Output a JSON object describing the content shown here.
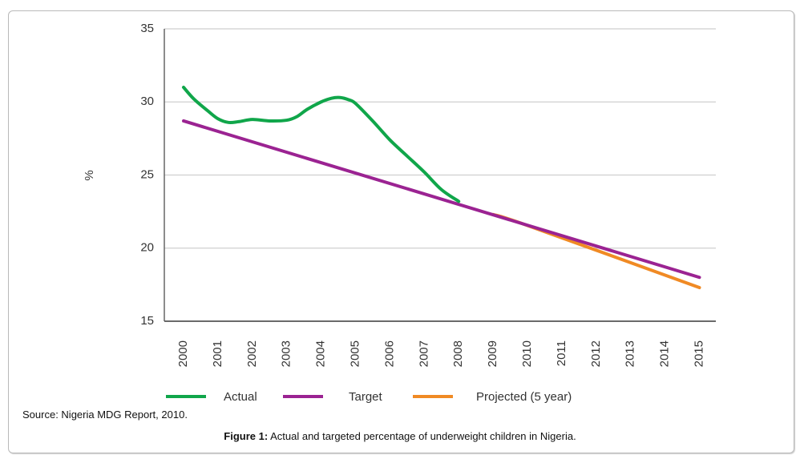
{
  "chart_data": {
    "type": "line",
    "title": "",
    "xlabel": "",
    "ylabel": "%",
    "ylim": [
      15,
      35
    ],
    "xlim": [
      2000,
      2015
    ],
    "yticks": [
      15,
      20,
      25,
      30,
      35
    ],
    "xticks": [
      "2000",
      "2001",
      "2002",
      "2003",
      "2004",
      "2005",
      "2006",
      "2007",
      "2008",
      "2009",
      "2010",
      "2011",
      "2012",
      "2013",
      "2014",
      "2015"
    ],
    "grid": "horizontal",
    "legend_position": "bottom",
    "series": [
      {
        "name": "Actual",
        "color": "#10a64a",
        "x": [
          2000,
          2000.3,
          2000.7,
          2001,
          2001.3,
          2001.6,
          2002,
          2002.5,
          2003,
          2003.3,
          2003.6,
          2004,
          2004.3,
          2004.55,
          2004.8,
          2005,
          2005.5,
          2006,
          2006.5,
          2007,
          2007.5,
          2008
        ],
        "y": [
          31.0,
          30.2,
          29.4,
          28.85,
          28.6,
          28.65,
          28.8,
          28.7,
          28.75,
          29.0,
          29.5,
          30.0,
          30.25,
          30.3,
          30.15,
          29.9,
          28.7,
          27.4,
          26.3,
          25.2,
          24.0,
          23.2
        ]
      },
      {
        "name": "Target",
        "color": "#9b2392",
        "x": [
          2000,
          2015
        ],
        "y": [
          28.7,
          18.0
        ]
      },
      {
        "name": "Projected (5 year)",
        "color": "#f08a24",
        "x": [
          2009,
          2010,
          2015
        ],
        "y": [
          22.3,
          21.55,
          17.3
        ]
      }
    ]
  },
  "source_text": "Source: Nigeria MDG Report, 2010.",
  "caption": {
    "label": "Figure 1:",
    "text": " Actual and targeted percentage of underweight children in Nigeria."
  }
}
